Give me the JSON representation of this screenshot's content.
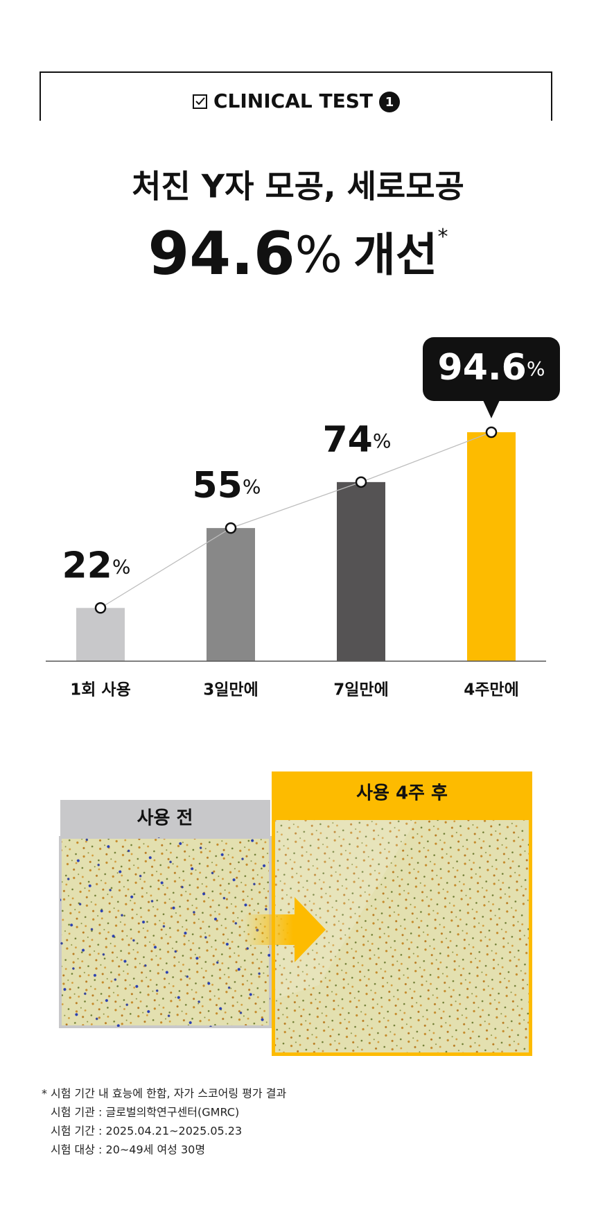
{
  "header": {
    "title": "CLINICAL TEST",
    "badge": "1"
  },
  "headline": {
    "line1": "처진 Y자 모공, 세로모공",
    "value": "94.6",
    "unit": "%",
    "suffix": "개선",
    "mark": "*"
  },
  "chart_data": {
    "type": "bar",
    "categories": [
      "1회 사용",
      "3일만에",
      "7일만에",
      "4주만에"
    ],
    "values": [
      22,
      55,
      74,
      94.6
    ],
    "unit": "%",
    "colors": [
      "#c8c8ca",
      "#888888",
      "#555354",
      "#fdbb00"
    ],
    "line_color": "#bdbdbd"
  },
  "comparison": {
    "before": "사용 전",
    "after": "사용 4주 후"
  },
  "footnote": {
    "mark": "*",
    "lines": [
      "시험 기간 내 효능에 한함, 자가 스코어링 평가 결과",
      "시험 기관 : 글로벌의학연구센터(GMRC)",
      "시험 기간 : 2025.04.21~2025.05.23",
      "시험 대상 : 20~49세 여성 30명"
    ]
  }
}
